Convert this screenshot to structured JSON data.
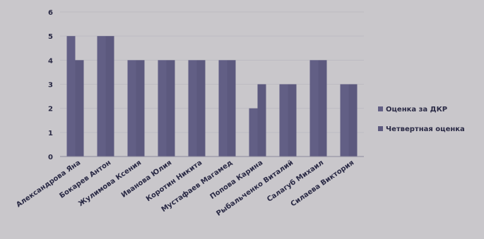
{
  "chart_data": {
    "type": "bar",
    "categories": [
      "Александрова Яна",
      "Бокарев Антон",
      "Жулимова Ксения",
      "Иванова Юлия",
      "Коротин Никита",
      "Мустафаев Магамед",
      "Попова Карина",
      "Рыбальченко Виталий",
      "Салагуб Михаил",
      "Силаева Виктория"
    ],
    "series": [
      {
        "name": "Оценка за ДКР",
        "values": [
          5,
          5,
          4,
          4,
          4,
          4,
          2,
          3,
          4,
          3
        ],
        "color": "#625f85"
      },
      {
        "name": "Четвертная оценка",
        "values": [
          4,
          5,
          4,
          4,
          4,
          4,
          3,
          3,
          4,
          3
        ],
        "color": "#5c597e"
      }
    ],
    "ylim": [
      0,
      6
    ],
    "yticks": [
      "0",
      "1",
      "2",
      "3",
      "4",
      "5",
      "6"
    ],
    "grid": true,
    "legend_position": "right"
  }
}
